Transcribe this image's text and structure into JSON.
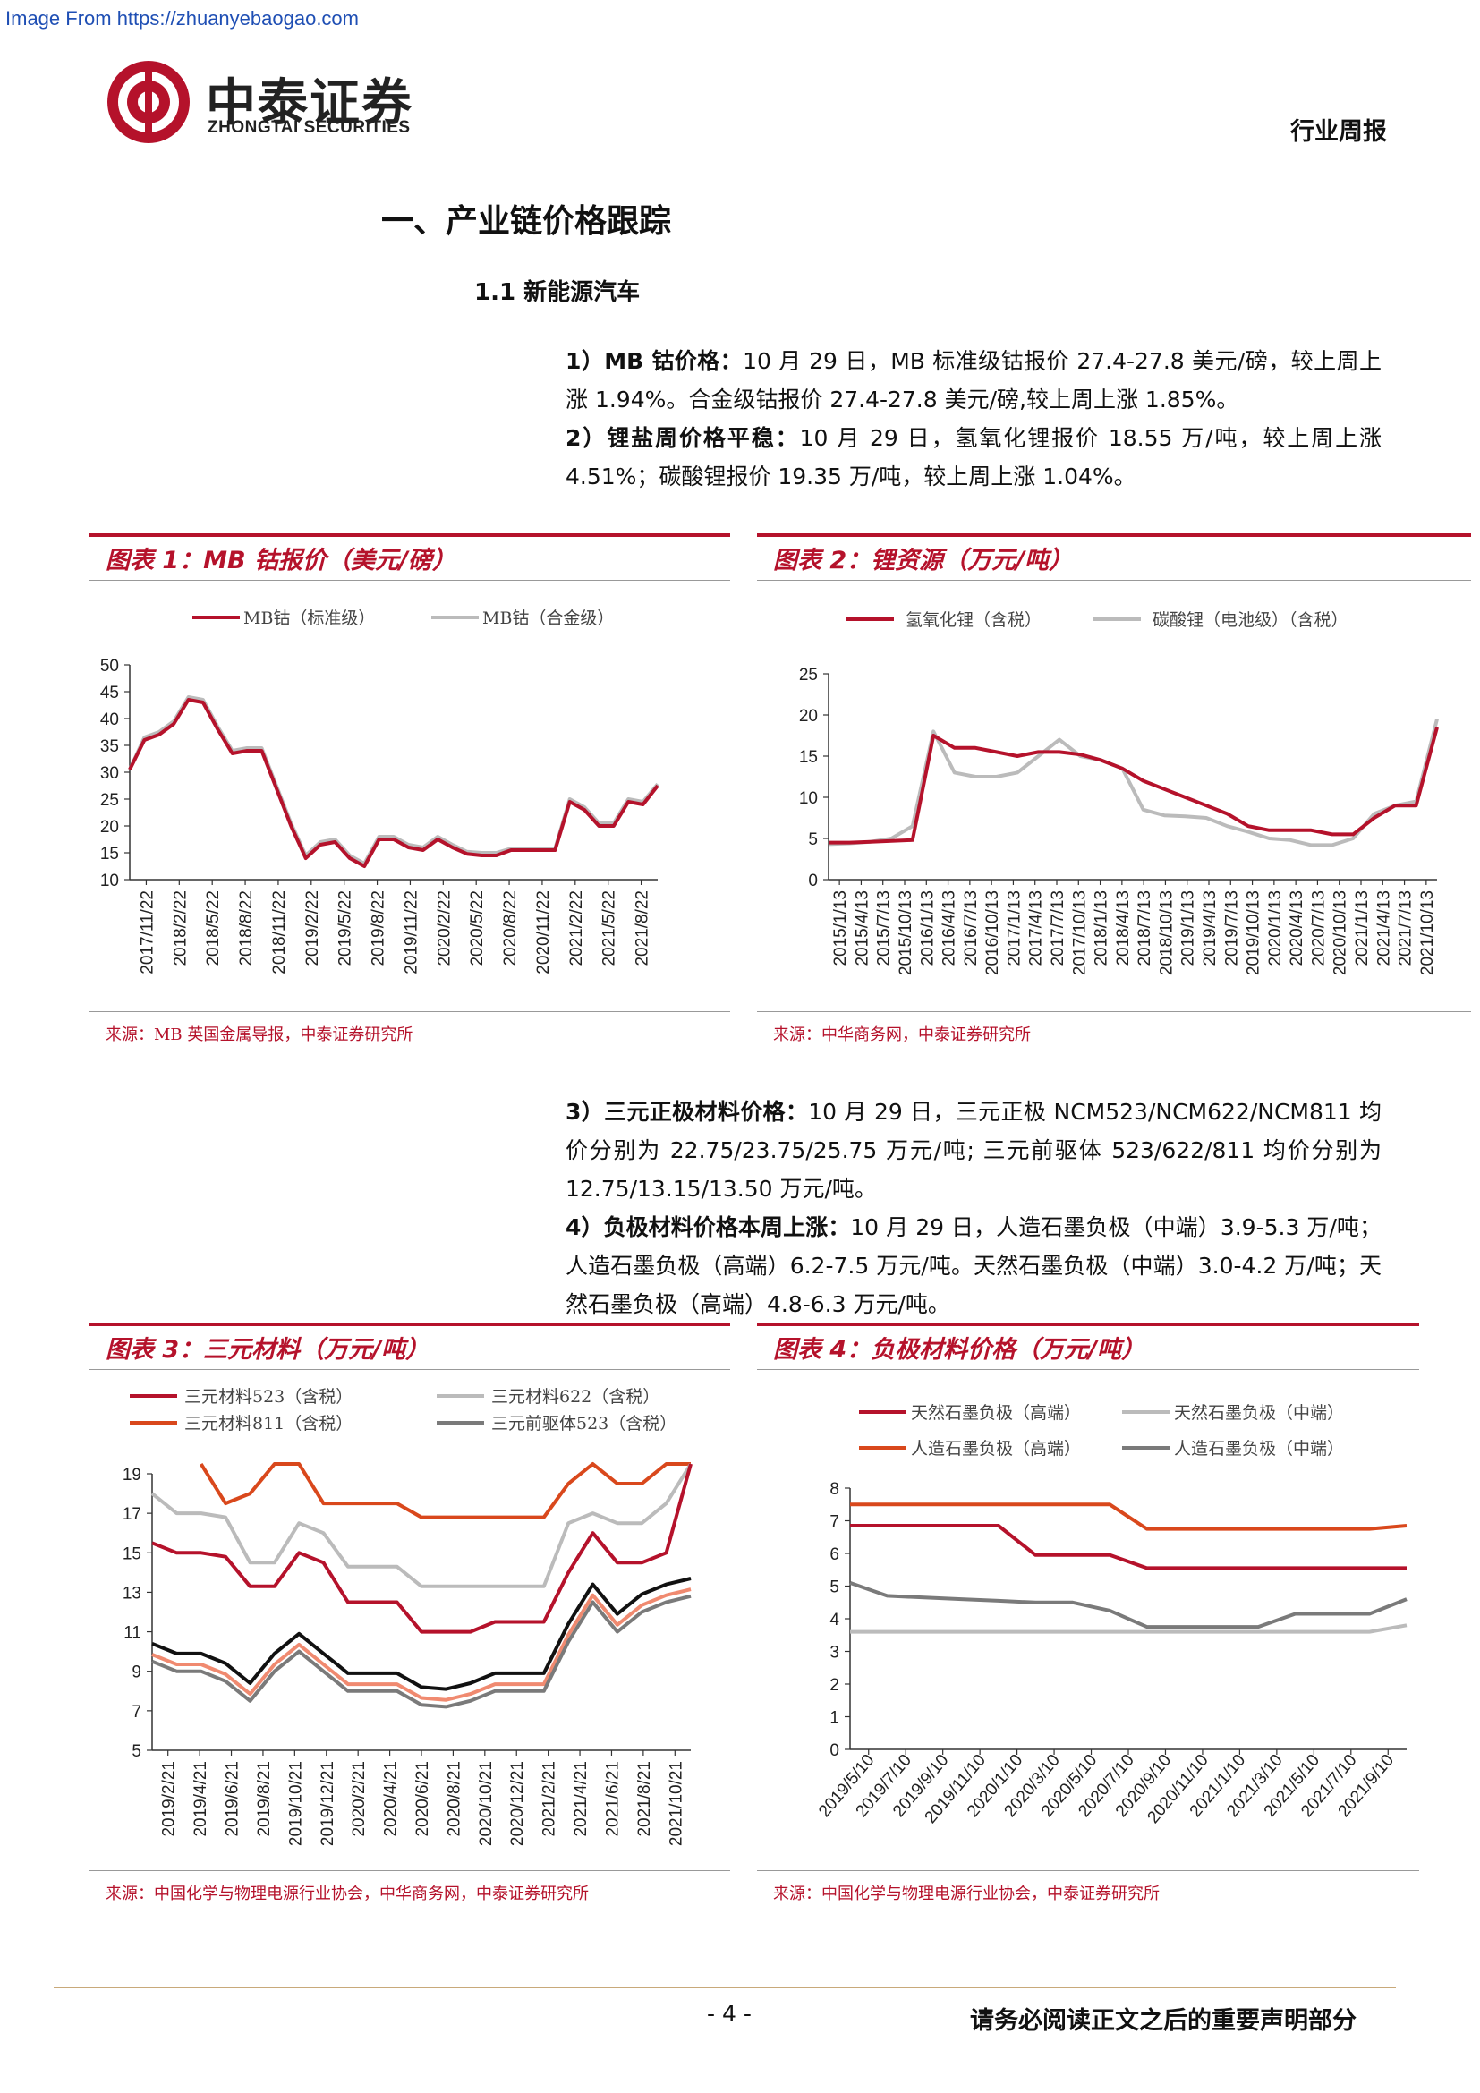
{
  "watermark": "Image From https://zhuanyebaogao.com",
  "header": {
    "brand_cn": "中泰证券",
    "brand_en": "ZHONGTAI SECURITIES",
    "report_type": "行业周报",
    "logo_color": "#b5122b"
  },
  "section": {
    "h1": "一、产业链价格跟踪",
    "h2": "1.1 新能源汽车"
  },
  "paragraphs": {
    "p1_bold": "1）MB 钴价格：",
    "p1_text": "10 月 29 日，MB 标准级钴报价 27.4-27.8 美元/磅，较上周上涨 1.94%。合金级钴报价 27.4-27.8 美元/磅,较上周上涨 1.85%。",
    "p2_bold": "2）锂盐周价格平稳：",
    "p2_text": "10 月 29 日，氢氧化锂报价 18.55 万/吨，较上周上涨 4.51%；碳酸锂报价 19.35 万/吨，较上周上涨 1.04%。",
    "p3_bold": "3）三元正极材料价格：",
    "p3_text": "10 月 29 日，三元正极 NCM523/NCM622/NCM811 均价分别为 22.75/23.75/25.75 万元/吨; 三元前驱体 523/622/811 均价分别为 12.75/13.15/13.50 万元/吨。",
    "p4_bold": "4）负极材料价格本周上涨：",
    "p4_text": "10 月 29 日，人造石墨负极（中端）3.9-5.3 万/吨；人造石墨负极（高端）6.2-7.5 万元/吨。天然石墨负极（中端）3.0-4.2 万/吨；天然石墨负极（高端）4.8-6.3 万元/吨。"
  },
  "figures": {
    "f1": {
      "title": "图表 1：MB 钴报价（美元/磅）",
      "source": "来源：MB 英国金属导报，中泰证券研究所"
    },
    "f2": {
      "title": "图表 2：锂资源（万元/吨）",
      "source": "来源：中华商务网，中泰证券研究所"
    },
    "f3": {
      "title": "图表 3：三元材料（万元/吨）",
      "source": "来源：中国化学与物理电源行业协会，中华商务网，中泰证券研究所"
    },
    "f4": {
      "title": "图表 4：负极材料价格（万元/吨）",
      "source": "来源：中国化学与物理电源行业协会，中泰证券研究所"
    }
  },
  "footer": {
    "page": "- 4 -",
    "disclaimer": "请务必阅读正文之后的重要声明部分"
  },
  "chart_data": [
    {
      "type": "line",
      "ylim": [
        10,
        50
      ],
      "yticks": [
        10,
        15,
        20,
        25,
        30,
        35,
        40,
        45,
        50
      ],
      "xticks": [
        "2017/11/22",
        "2018/2/22",
        "2018/5/22",
        "2018/8/22",
        "2018/11/22",
        "2019/2/22",
        "2019/5/22",
        "2019/8/22",
        "2019/11/22",
        "2020/2/22",
        "2020/5/22",
        "2020/8/22",
        "2020/11/22",
        "2021/2/22",
        "2021/5/22",
        "2021/8/22"
      ],
      "series": [
        {
          "name": "MB钴（标准级）",
          "color": "#b5122b",
          "values": [
            30.5,
            36,
            37,
            39,
            43.5,
            43,
            38,
            33.5,
            34,
            34,
            27,
            20,
            14,
            16.5,
            17,
            14,
            12.5,
            17.5,
            17.5,
            16,
            15.5,
            17.5,
            16,
            14.8,
            14.5,
            14.5,
            15.5,
            15.5,
            15.5,
            15.5,
            24.5,
            23,
            20,
            20,
            24.5,
            24,
            27.5
          ]
        },
        {
          "name": "MB钴（合金级）",
          "color": "#bbbbbb",
          "values": [
            30.5,
            36.5,
            37.5,
            39.5,
            44,
            43.5,
            38.5,
            34,
            34.5,
            34.5,
            27.5,
            20.5,
            14.5,
            17,
            17.5,
            14.5,
            13,
            18,
            18,
            16.5,
            16,
            18,
            16.5,
            15.2,
            15,
            15,
            15.8,
            15.8,
            15.8,
            15.8,
            25,
            23.5,
            20.5,
            20.5,
            25,
            24.5,
            27.8
          ]
        }
      ]
    },
    {
      "type": "line",
      "ylim": [
        0,
        25
      ],
      "yticks": [
        0,
        5,
        10,
        15,
        20,
        25
      ],
      "xticks": [
        "2015/1/13",
        "2015/4/13",
        "2015/7/13",
        "2015/10/13",
        "2016/1/13",
        "2016/4/13",
        "2016/7/13",
        "2016/10/13",
        "2017/1/13",
        "2017/4/13",
        "2017/7/13",
        "2017/10/13",
        "2018/1/13",
        "2018/4/13",
        "2018/7/13",
        "2018/10/13",
        "2019/1/13",
        "2019/4/13",
        "2019/7/13",
        "2019/10/13",
        "2020/1/13",
        "2020/4/13",
        "2020/7/13",
        "2020/10/13",
        "2021/1/13",
        "2021/4/13",
        "2021/7/13",
        "2021/10/13"
      ],
      "series": [
        {
          "name": "氢氧化锂（含税）",
          "color": "#b5122b",
          "values": [
            4.5,
            4.5,
            4.6,
            4.7,
            4.8,
            17.5,
            16,
            16,
            15.5,
            15,
            15.5,
            15.5,
            15.2,
            14.5,
            13.5,
            12,
            11,
            10,
            9,
            8,
            6.5,
            6,
            6,
            6,
            5.5,
            5.5,
            7.5,
            9,
            9,
            18.5
          ]
        },
        {
          "name": "碳酸锂（电池级）（含税）",
          "color": "#bbbbbb",
          "values": [
            4.3,
            4.4,
            4.6,
            5,
            6.5,
            18,
            13,
            12.5,
            12.5,
            13,
            15,
            17,
            15,
            14.5,
            13.5,
            8.5,
            7.8,
            7.7,
            7.5,
            6.5,
            5.8,
            5,
            4.8,
            4.2,
            4.2,
            5,
            8,
            9,
            9.5,
            19.5
          ]
        }
      ]
    },
    {
      "type": "line",
      "ylim": [
        5,
        19
      ],
      "yticks": [
        5,
        7,
        9,
        11,
        13,
        15,
        17,
        19
      ],
      "xticks": [
        "2019/2/21",
        "2019/4/21",
        "2019/6/21",
        "2019/8/21",
        "2019/10/21",
        "2019/12/21",
        "2020/2/21",
        "2020/4/21",
        "2020/6/21",
        "2020/8/21",
        "2020/10/21",
        "2020/12/21",
        "2021/2/21",
        "2021/4/21",
        "2021/6/21",
        "2021/8/21",
        "2021/10/21"
      ],
      "series": [
        {
          "name": "三元材料523（含税）",
          "color": "#b5122b",
          "values": [
            15.5,
            15,
            15,
            14.8,
            13.3,
            13.3,
            15,
            14.5,
            12.5,
            12.5,
            12.5,
            11,
            11,
            11,
            11.5,
            11.5,
            11.5,
            14,
            16,
            14.5,
            14.5,
            15,
            19.5
          ]
        },
        {
          "name": "三元材料622（含税）",
          "color": "#bbbbbb",
          "values": [
            18,
            17,
            17,
            16.8,
            14.5,
            14.5,
            16.5,
            16,
            14.3,
            14.3,
            14.3,
            13.3,
            13.3,
            13.3,
            13.3,
            13.3,
            13.3,
            16.5,
            17,
            16.5,
            16.5,
            17.5,
            19.5
          ]
        },
        {
          "name": "三元材料811（含税）",
          "color": "#d9481c",
          "values": [
            null,
            null,
            19.5,
            17.5,
            18,
            19.5,
            19.5,
            17.5,
            17.5,
            17.5,
            17.5,
            16.8,
            16.8,
            16.8,
            16.8,
            16.8,
            16.8,
            18.5,
            19.5,
            18.5,
            18.5,
            19.5,
            19.5
          ]
        },
        {
          "name": "三元前驱体523（含税）",
          "color": "#7a7a7a",
          "values": [
            9.5,
            9,
            9,
            8.5,
            7.5,
            9,
            10,
            9,
            8,
            8,
            8,
            7.3,
            7.2,
            7.5,
            8,
            8,
            8,
            10.5,
            12.5,
            11,
            12,
            12.5,
            12.8
          ]
        }
      ],
      "unlabeled_series_colors": [
        "#111111",
        "#f08a70"
      ]
    },
    {
      "type": "line",
      "ylim": [
        0,
        8
      ],
      "yticks": [
        0,
        1,
        2,
        3,
        4,
        5,
        6,
        7,
        8
      ],
      "xticks": [
        "2019/5/10",
        "2019/7/10",
        "2019/9/10",
        "2019/11/10",
        "2020/1/10",
        "2020/3/10",
        "2020/5/10",
        "2020/7/10",
        "2020/9/10",
        "2020/11/10",
        "2021/1/10",
        "2021/3/10",
        "2021/5/10",
        "2021/7/10",
        "2021/9/10"
      ],
      "series": [
        {
          "name": "天然石墨负极（高端）",
          "color": "#b5122b",
          "values": [
            6.85,
            6.85,
            6.85,
            6.85,
            6.85,
            5.95,
            5.95,
            5.95,
            5.55,
            5.55,
            5.55,
            5.55,
            5.55,
            5.55,
            5.55,
            5.55
          ]
        },
        {
          "name": "天然石墨负极（中端）",
          "color": "#bbbbbb",
          "values": [
            3.6,
            3.6,
            3.6,
            3.6,
            3.6,
            3.6,
            3.6,
            3.6,
            3.6,
            3.6,
            3.6,
            3.6,
            3.6,
            3.6,
            3.6,
            3.8
          ]
        },
        {
          "name": "人造石墨负极（高端）",
          "color": "#d9481c",
          "values": [
            7.5,
            7.5,
            7.5,
            7.5,
            7.5,
            7.5,
            7.5,
            7.5,
            6.75,
            6.75,
            6.75,
            6.75,
            6.75,
            6.75,
            6.75,
            6.85
          ]
        },
        {
          "name": "人造石墨负极（中端）",
          "color": "#7a7a7a",
          "values": [
            5.1,
            4.7,
            4.65,
            4.6,
            4.55,
            4.5,
            4.5,
            4.25,
            3.75,
            3.75,
            3.75,
            3.75,
            4.15,
            4.15,
            4.15,
            4.6
          ]
        }
      ]
    }
  ]
}
